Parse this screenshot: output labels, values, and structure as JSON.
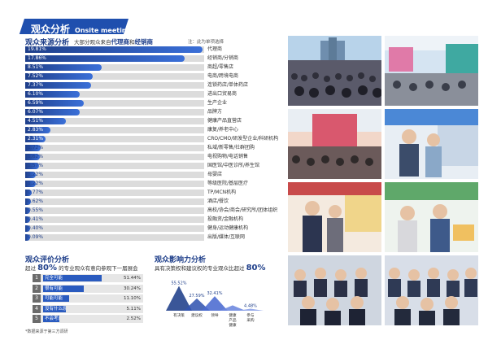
{
  "header": {
    "title_zh": "观众分析",
    "title_en": "Onsite meetings"
  },
  "source": {
    "title": "观众来源分析",
    "sub_prefix": "大部分观众来自",
    "sub_term1": "代理商",
    "sub_and": "和",
    "sub_term2": "经销商",
    "note": "注：此为单项选择"
  },
  "chart_data": [
    {
      "type": "bar",
      "title": "观众来源分析",
      "categories": [
        "代理商",
        "经销商/分销商",
        "商超/零售店",
        "电商/跨境电商",
        "连锁药店/单体药店",
        "进出口贸易商",
        "生产企业",
        "品牌方",
        "健康产品直营店",
        "康复/养老中心",
        "CRO/CMO/研发型企业/科研机构",
        "私域/新零售/社群团购",
        "电视购物/电话销售",
        "国医馆/中医诊所/养生馆",
        "母婴店",
        "等级医院/基层医疗",
        "TP/MCN机构",
        "酒店/餐饮",
        "高校/协会/商会/研究所/团体组织",
        "投融资/金融机构",
        "健身/运动健康机构",
        "出版/媒体/互联网"
      ],
      "value_labels": [
        "19.81%",
        "17.86%",
        "8.51%",
        "7.52%",
        "7.37%",
        "6.10%",
        "6.59%",
        "6.07%",
        "4.51%",
        "2.83%",
        "2.31%",
        "1.72%",
        "1.62%",
        "1.57%",
        "1.22%",
        "1.22%",
        "0.77%",
        "0.62%",
        "0.55%",
        "0.41%",
        "0.40%",
        "0.09%"
      ],
      "values": [
        19.81,
        17.86,
        8.51,
        7.52,
        7.37,
        6.1,
        6.59,
        6.07,
        4.51,
        2.83,
        2.31,
        1.72,
        1.62,
        1.57,
        1.22,
        1.22,
        0.77,
        0.62,
        0.55,
        0.41,
        0.4,
        0.09
      ],
      "xlim": [
        0,
        20
      ]
    },
    {
      "type": "bar",
      "title": "观众评价分析",
      "categories": [
        "完全可能",
        "很有可能",
        "可能可能",
        "没有什么原因",
        "不会考虑"
      ],
      "value_labels": [
        "51.44%",
        "30.24%",
        "11.10%",
        "5.11%",
        "2.52%"
      ],
      "values": [
        51.44,
        30.24,
        11.1,
        5.11,
        2.52
      ]
    },
    {
      "type": "area",
      "title": "观众影响力分析",
      "categories": [
        "有决策权",
        "建议权",
        "领导",
        "健康产品/健康",
        "参与采购"
      ],
      "value_labels": [
        "55.52%",
        "27.59%",
        "32.41%",
        "",
        "4.48%"
      ],
      "values": [
        55.52,
        27.59,
        32.41,
        12,
        4.48
      ]
    }
  ],
  "evaluation": {
    "title": "观众评价分析",
    "sub_prefix": "超过",
    "sub_big": "80%",
    "sub_suffix": "的专业观众有意向参观下一届展会",
    "rows": [
      {
        "num": "1",
        "label": "完全可能",
        "pct": "51.44%",
        "fill": 0.7
      },
      {
        "num": "2",
        "label": "很有可能",
        "pct": "30.24%",
        "fill": 0.48
      },
      {
        "num": "3",
        "label": "可能可能",
        "pct": "11.10%",
        "fill": 0.3
      },
      {
        "num": "4",
        "label": "没有什么原因",
        "pct": "5.11%",
        "fill": 0.26
      },
      {
        "num": "5",
        "label": "不会考虑",
        "pct": "2.52%",
        "fill": 0.18
      }
    ],
    "footnote": "*数据来源于第三方调研"
  },
  "influence": {
    "title": "观众影响力分析",
    "sub_prefix": "具有决策权和建议权的专业观众比超过",
    "sub_big": "80%",
    "labels": [
      "有决策",
      "建议权",
      "领导",
      "健康\n产品\n健康",
      "参与\n采购"
    ]
  },
  "colors": {
    "accent": "#1f4fae",
    "bar_start": "#1f3f8a",
    "bar_end": "#3a6fd8",
    "track": "#dcdcdc"
  }
}
